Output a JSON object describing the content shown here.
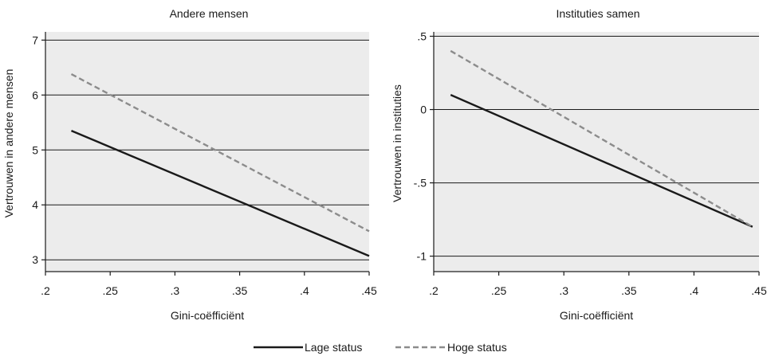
{
  "chart_data": [
    {
      "type": "line",
      "title": "Andere mensen",
      "xlabel": "Gini-coëfficiënt",
      "ylabel": "Vertrouwen in andere mensen",
      "xlim": [
        0.2,
        0.45
      ],
      "ylim": [
        2.8,
        7.15
      ],
      "xticks": [
        0.2,
        0.25,
        0.3,
        0.35,
        0.4,
        0.45
      ],
      "xtick_labels": [
        ".2",
        ".25",
        ".3",
        ".35",
        ".4",
        ".45"
      ],
      "yticks": [
        3,
        4,
        5,
        6,
        7
      ],
      "ytick_labels": [
        "3",
        "4",
        "5",
        "6",
        "7"
      ],
      "grid": true,
      "series": [
        {
          "name": "Lage status",
          "x": [
            0.22,
            0.45
          ],
          "y": [
            5.35,
            3.07
          ]
        },
        {
          "name": "Hoge status",
          "x": [
            0.22,
            0.45
          ],
          "y": [
            6.38,
            3.52
          ]
        }
      ]
    },
    {
      "type": "line",
      "title": "Instituties samen",
      "xlabel": "Gini-coëfficiënt",
      "ylabel": "Vertrouwen in instituties",
      "xlim": [
        0.2,
        0.45
      ],
      "ylim": [
        -1.1,
        0.53
      ],
      "xticks": [
        0.2,
        0.25,
        0.3,
        0.35,
        0.4,
        0.45
      ],
      "xtick_labels": [
        ".2",
        ".25",
        ".3",
        ".35",
        ".4",
        ".45"
      ],
      "yticks": [
        -1,
        -0.5,
        0,
        0.5
      ],
      "ytick_labels": [
        "-1",
        "-.5",
        "0",
        ".5"
      ],
      "grid": true,
      "series": [
        {
          "name": "Lage status",
          "x": [
            0.213,
            0.445
          ],
          "y": [
            0.1,
            -0.8
          ]
        },
        {
          "name": "Hoge status",
          "x": [
            0.213,
            0.445
          ],
          "y": [
            0.4,
            -0.8
          ]
        }
      ]
    }
  ],
  "legend": {
    "placement": "bottom-center",
    "items": [
      {
        "label": "Lage status",
        "style": "solid",
        "color": "#1a1a1a"
      },
      {
        "label": "Hoge status",
        "style": "dashed",
        "color": "#8c8c8c"
      }
    ]
  },
  "colors": {
    "plot_background": "#ececec",
    "grid": "#1a1a1a",
    "lage_status": "#1a1a1a",
    "hoge_status": "#8c8c8c"
  }
}
